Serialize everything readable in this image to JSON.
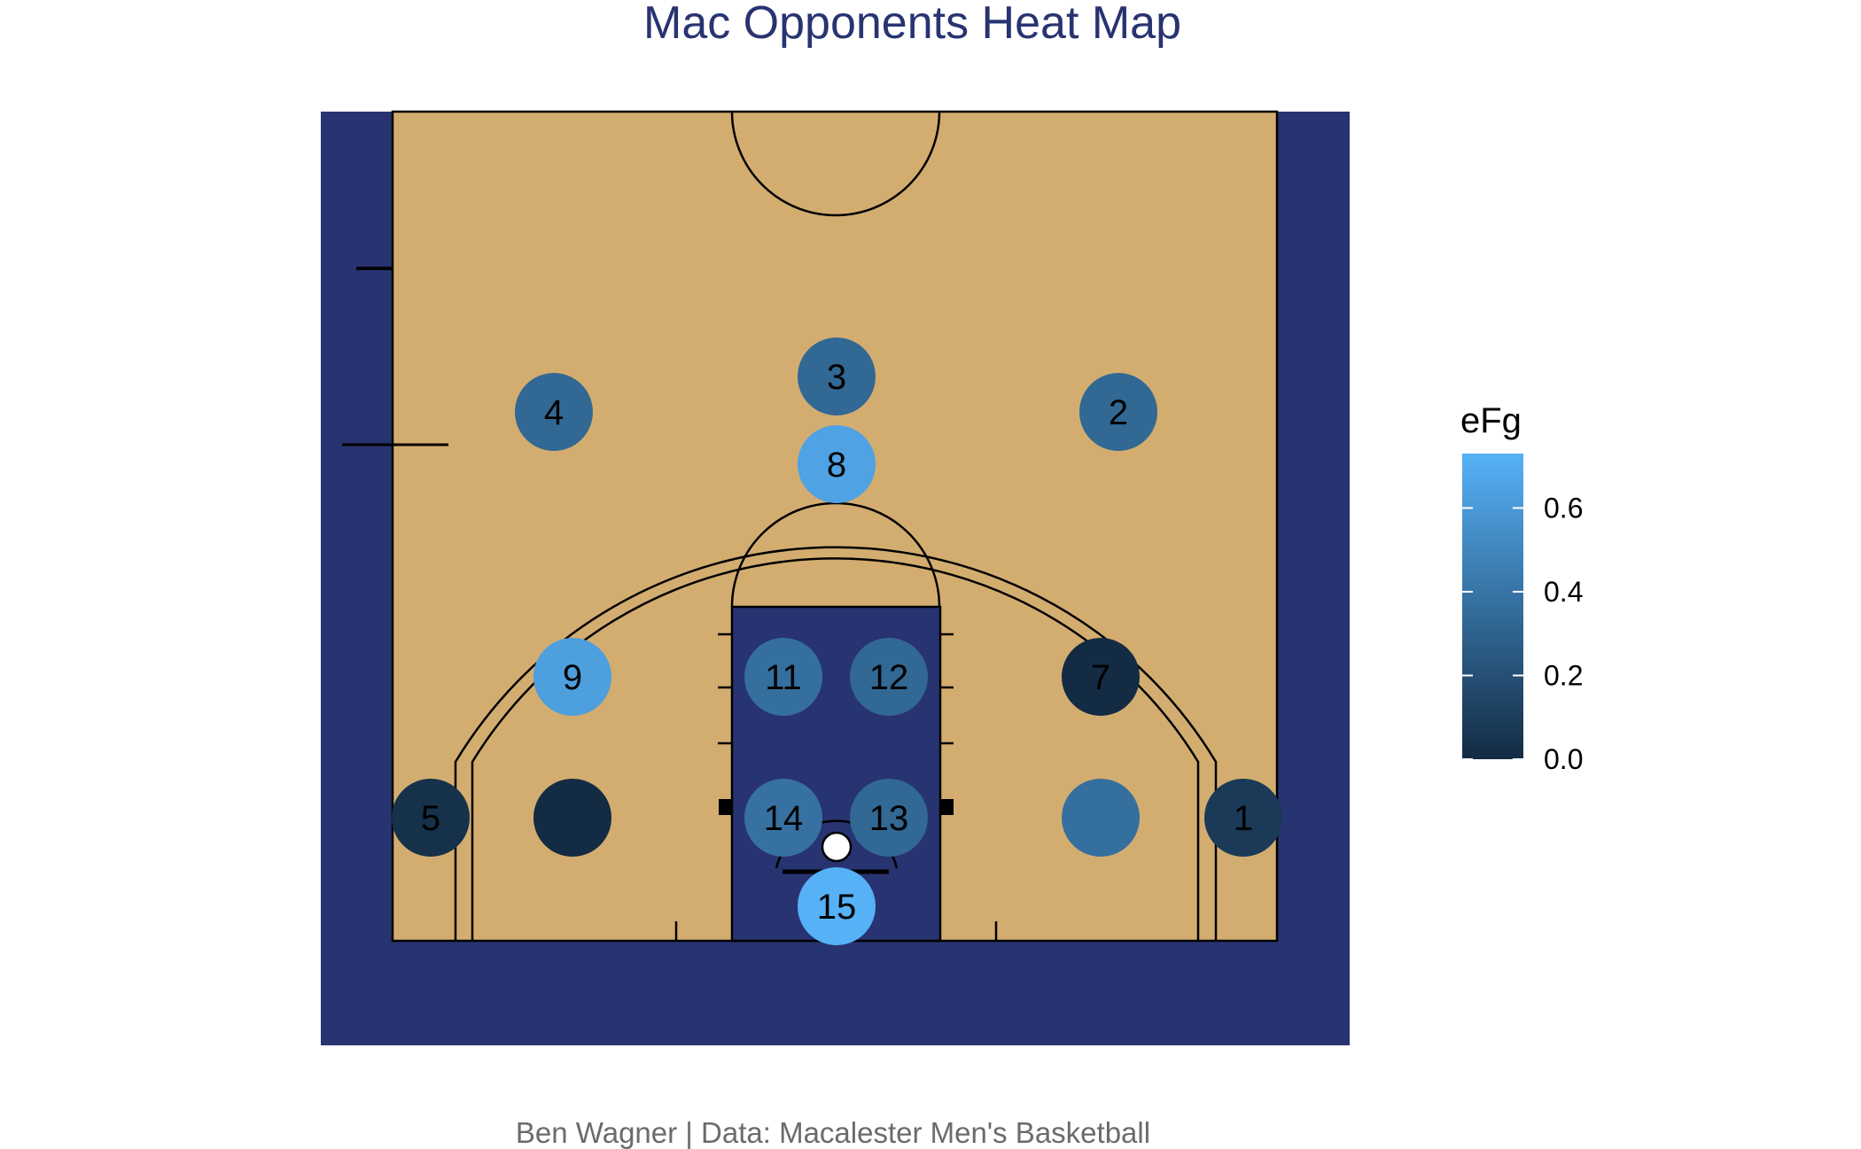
{
  "chart_data": {
    "type": "heatmap",
    "title": "Mac Opponents Heat Map",
    "caption": "Ben Wagner | Data: Macalester Men's Basketball",
    "legend": {
      "title": "eFg",
      "position": "right",
      "range": [
        0.0,
        0.73
      ],
      "ticks": [
        "0.0",
        "0.2",
        "0.4",
        "0.6"
      ],
      "tick_values": [
        0.0,
        0.2,
        0.4,
        0.6
      ],
      "low_color": "#132B43",
      "high_color": "#56B1F7"
    },
    "zones": [
      {
        "label": "1",
        "efg": 0.08
      },
      {
        "label": "2",
        "efg": 0.33
      },
      {
        "label": "3",
        "efg": 0.33
      },
      {
        "label": "4",
        "efg": 0.33
      },
      {
        "label": "5",
        "efg": 0.03
      },
      {
        "label": "",
        "efg": 0.0
      },
      {
        "label": "7",
        "efg": 0.0
      },
      {
        "label": "8",
        "efg": 0.65
      },
      {
        "label": "9",
        "efg": 0.63
      },
      {
        "label": "",
        "efg": 0.37
      },
      {
        "label": "11",
        "efg": 0.37
      },
      {
        "label": "12",
        "efg": 0.33
      },
      {
        "label": "13",
        "efg": 0.33
      },
      {
        "label": "14",
        "efg": 0.38
      },
      {
        "label": "15",
        "efg": 0.73
      }
    ],
    "colors": {
      "background": "#283371",
      "floor": "#d3ad70",
      "paint": "#283371",
      "lines": "#000000",
      "title": "#283371",
      "caption": "#6b6b6b"
    }
  }
}
